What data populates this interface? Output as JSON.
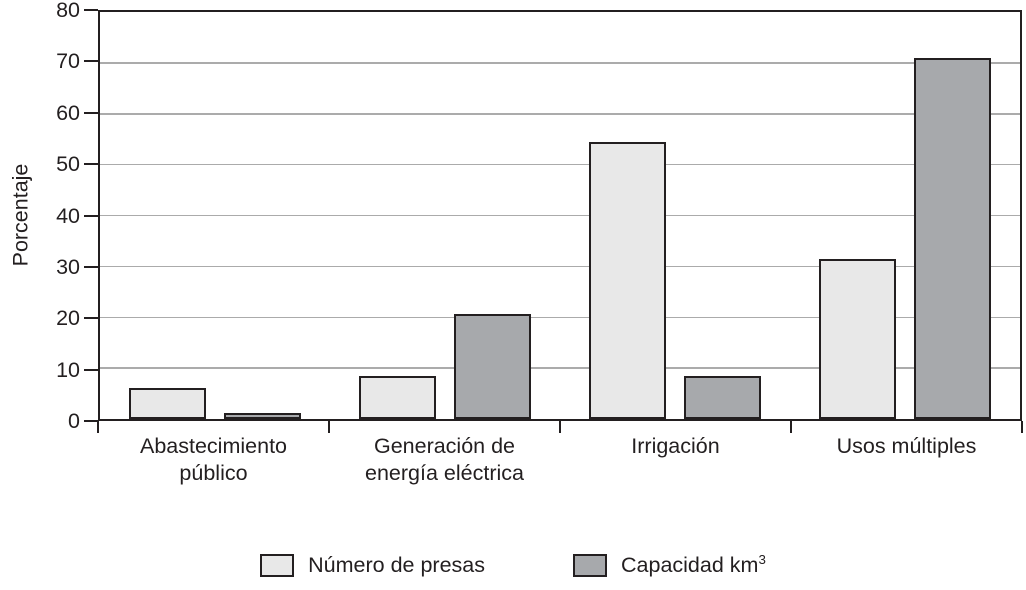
{
  "chart_data": {
    "type": "bar",
    "title": "",
    "xlabel": "",
    "ylabel": "Porcentaje",
    "ylim": [
      0,
      80
    ],
    "yticks": [
      0,
      10,
      20,
      30,
      40,
      50,
      60,
      70,
      80
    ],
    "grid": "horizontal",
    "legend_position": "bottom",
    "categories": [
      "Abastecimiento público",
      "Generación de energía eléctrica",
      "Irrigación",
      "Usos múltiples"
    ],
    "series": [
      {
        "name": "Número de presas",
        "color": "#e8e8e8",
        "values": [
          6.1,
          8.4,
          54.5,
          31.5
        ]
      },
      {
        "name": "Capacidad km³",
        "color": "#a7a9ac",
        "values": [
          1.1,
          20.6,
          8.4,
          71
        ]
      }
    ],
    "colors": {
      "bar_border": "#231f20",
      "axis": "#231f20",
      "gridline": "#ababab",
      "text": "#231f20",
      "background": "#ffffff"
    }
  },
  "legend": {
    "items": [
      {
        "label": "Número de presas",
        "sup": ""
      },
      {
        "label": "Capacidad km",
        "sup": "3"
      }
    ]
  }
}
